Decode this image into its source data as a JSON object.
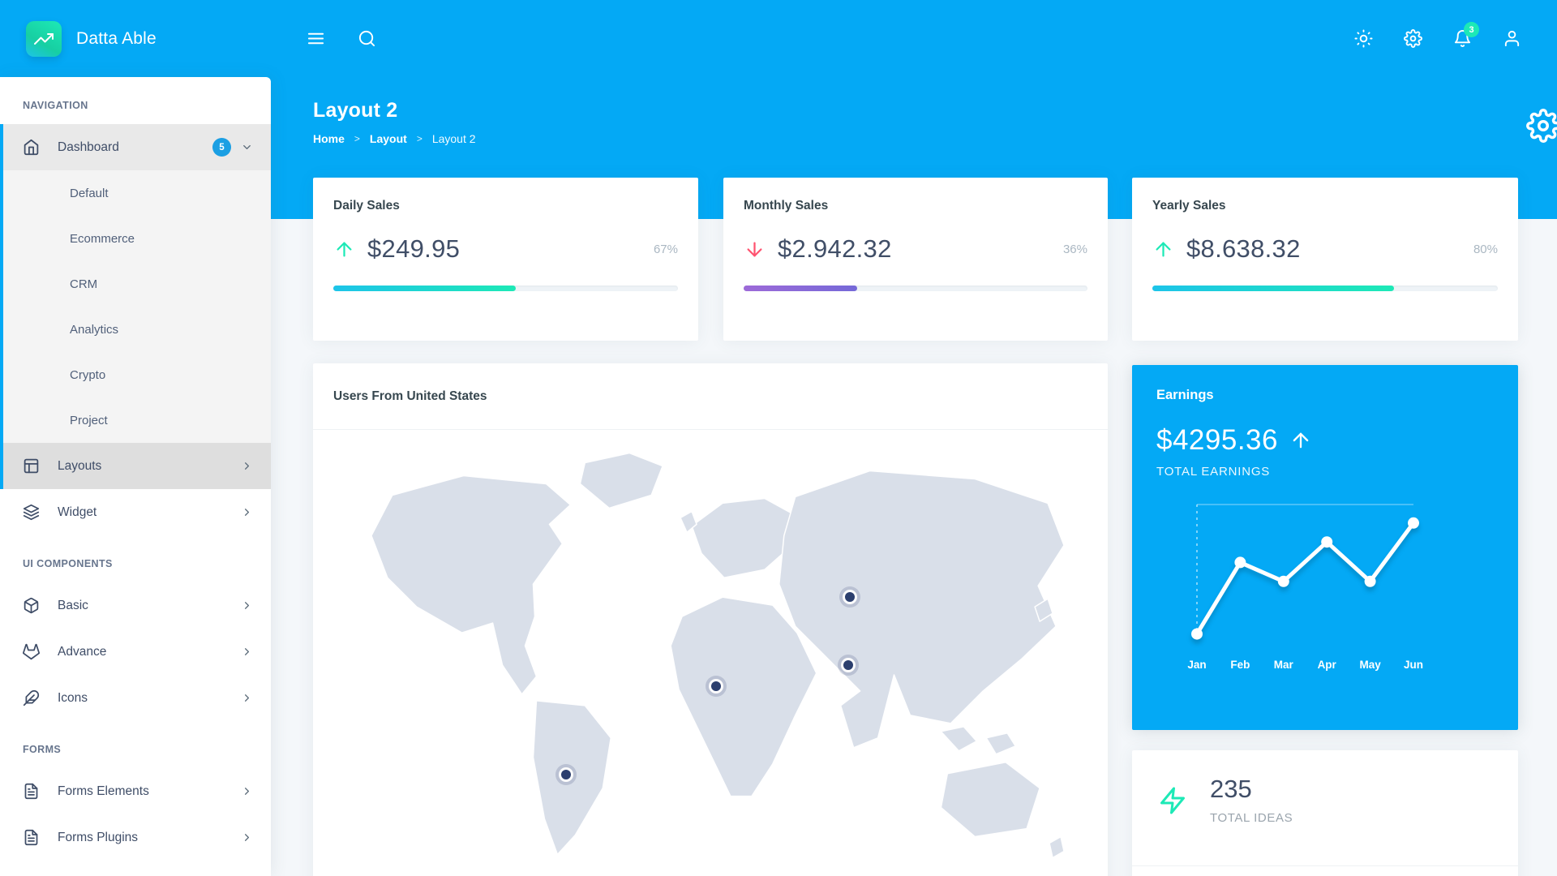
{
  "brand": {
    "title": "Datta Able"
  },
  "header": {
    "notifications_count": "3",
    "icons": [
      "menu-icon",
      "search-icon",
      "sun-icon",
      "gear-icon",
      "bell-icon",
      "user-icon",
      "config-gear-icon"
    ]
  },
  "sidebar": {
    "sections": [
      {
        "caption": "NAVIGATION",
        "items": [
          {
            "label": "Dashboard",
            "icon": "home-icon",
            "badge": "5",
            "state": "open",
            "children": [
              "Default",
              "Ecommerce",
              "CRM",
              "Analytics",
              "Crypto",
              "Project"
            ]
          },
          {
            "label": "Layouts",
            "icon": "layout-icon",
            "state": "active"
          },
          {
            "label": "Widget",
            "icon": "layers-icon"
          }
        ]
      },
      {
        "caption": "UI COMPONENTS",
        "items": [
          {
            "label": "Basic",
            "icon": "box-icon"
          },
          {
            "label": "Advance",
            "icon": "gitlab-icon"
          },
          {
            "label": "Icons",
            "icon": "feather-icon"
          }
        ]
      },
      {
        "caption": "FORMS",
        "items": [
          {
            "label": "Forms Elements",
            "icon": "file-text-icon"
          },
          {
            "label": "Forms Plugins",
            "icon": "file-text-icon"
          }
        ]
      }
    ]
  },
  "page": {
    "title": "Layout 2",
    "breadcrumb": [
      "Home",
      "Layout",
      "Layout 2"
    ]
  },
  "stats_cards": [
    {
      "title": "Daily Sales",
      "value": "$249.95",
      "trend": "up",
      "percent": "67%",
      "bar_fill": 53,
      "bar_gradient": [
        "#1dc4e9",
        "#1de9b6"
      ]
    },
    {
      "title": "Monthly Sales",
      "value": "$2.942.32",
      "trend": "down",
      "percent": "36%",
      "bar_fill": 33,
      "bar_gradient": [
        "#9d6ad8",
        "#7569d8"
      ]
    },
    {
      "title": "Yearly Sales",
      "value": "$8.638.32",
      "trend": "up",
      "percent": "80%",
      "bar_fill": 70,
      "bar_gradient": [
        "#1dc4e9",
        "#1de9b6"
      ]
    }
  ],
  "map_card": {
    "title": "Users From United States",
    "markers": [
      {
        "place": "siberia",
        "x": 67.6,
        "y": 36.3
      },
      {
        "place": "china",
        "x": 67.3,
        "y": 51.1
      },
      {
        "place": "egypt",
        "x": 50.7,
        "y": 55.7
      },
      {
        "place": "brazil",
        "x": 31.8,
        "y": 74.8
      }
    ]
  },
  "earnings_card": {
    "title": "Earnings",
    "value": "$4295.36",
    "trend": "up",
    "subtitle": "TOTAL EARNINGS",
    "chart": {
      "type": "line",
      "categories": [
        "Jan",
        "Feb",
        "Mar",
        "Apr",
        "May",
        "Jun"
      ],
      "values": [
        8,
        57,
        44,
        71,
        44,
        84
      ],
      "ylim": [
        0,
        100
      ],
      "line_color": "#ffffff",
      "grid": "top-line-and-left-dashed-axis"
    }
  },
  "ideas_card": {
    "value": "235",
    "label": "TOTAL IDEAS",
    "icon": "zap-icon"
  },
  "colors": {
    "header_blue": "#04a9f5",
    "success_green": "#1de9b6",
    "danger_red": "#ff5370",
    "page_bg": "#f4f7fa",
    "sidebar_text": "#3f4d67",
    "card_title": "#37474f",
    "value_text": "#404e67",
    "muted_text": "#aab7c2",
    "map_land": "#d9dfe9",
    "marker": "#2c3f6e",
    "badge_blue": "#1b9fe3"
  }
}
